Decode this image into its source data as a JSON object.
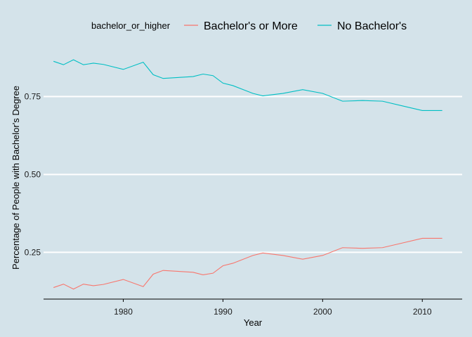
{
  "chart_data": {
    "type": "line",
    "title": "",
    "xlabel": "Year",
    "ylabel": "Percentage of People with Bachelor's Degree",
    "xlim": [
      1972,
      2014
    ],
    "ylim": [
      0.1,
      0.92
    ],
    "x_ticks": [
      1980,
      1990,
      2000,
      2010
    ],
    "y_ticks": [
      0.25,
      0.5,
      0.75
    ],
    "y_tick_labels": [
      "0.25",
      "0.50",
      "0.75"
    ],
    "grid": "horizontal-major",
    "legend": {
      "title": "bachelor_or_higher",
      "position": "top"
    },
    "x": [
      1973,
      1974,
      1975,
      1976,
      1977,
      1978,
      1980,
      1982,
      1983,
      1984,
      1985,
      1986,
      1987,
      1988,
      1989,
      1990,
      1991,
      1993,
      1994,
      1996,
      1998,
      2000,
      2002,
      2004,
      2006,
      2008,
      2010,
      2012
    ],
    "series": [
      {
        "name": "Bachelor's or More",
        "color": "#f8766d",
        "values": [
          0.137,
          0.148,
          0.132,
          0.148,
          0.143,
          0.147,
          0.163,
          0.14,
          0.18,
          0.192,
          0.19,
          0.188,
          0.186,
          0.178,
          0.183,
          0.207,
          0.215,
          0.24,
          0.248,
          0.24,
          0.228,
          0.24,
          0.265,
          0.263,
          0.265,
          0.28,
          0.295,
          0.295
        ]
      },
      {
        "name": "No Bachelor's",
        "color": "#00bfc4",
        "values": [
          0.863,
          0.852,
          0.868,
          0.852,
          0.857,
          0.853,
          0.837,
          0.86,
          0.82,
          0.808,
          0.81,
          0.812,
          0.814,
          0.822,
          0.817,
          0.793,
          0.785,
          0.76,
          0.752,
          0.76,
          0.772,
          0.76,
          0.735,
          0.737,
          0.735,
          0.72,
          0.705,
          0.705
        ]
      }
    ]
  }
}
